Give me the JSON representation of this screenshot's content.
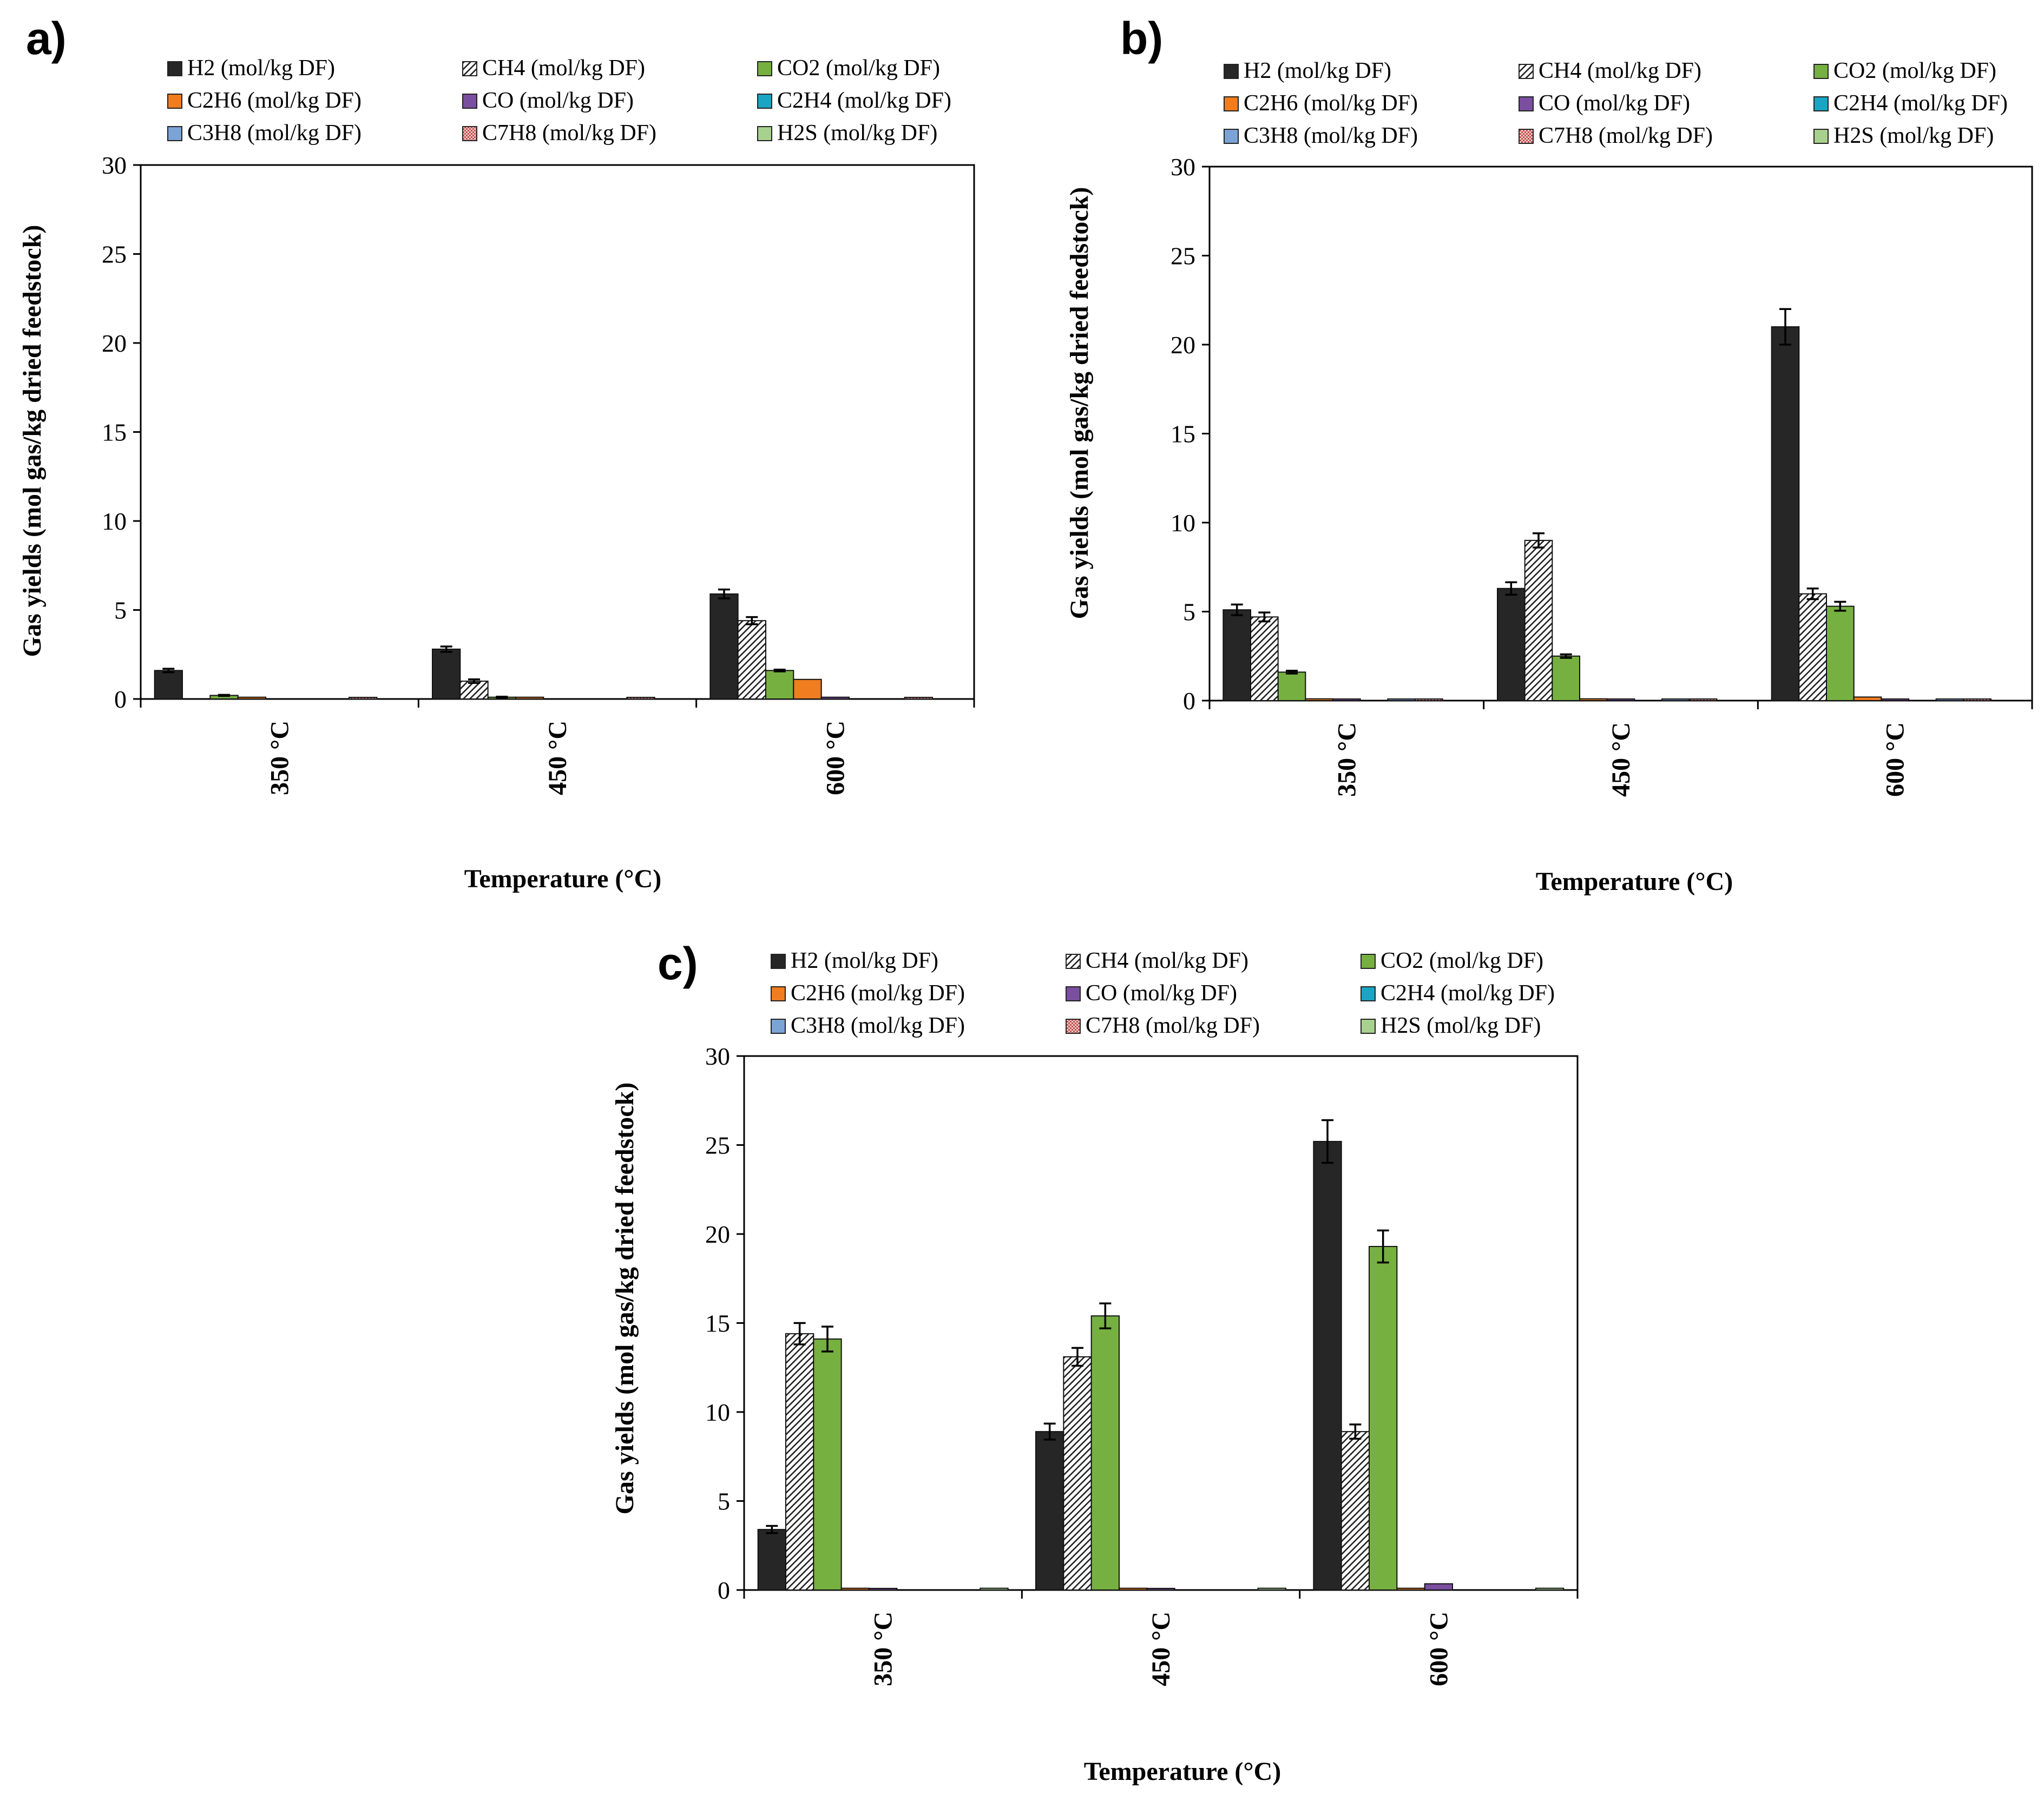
{
  "figure": {
    "panel_labels": [
      "a)",
      "b)",
      "c)"
    ]
  },
  "chart_data": [
    {
      "panel": "a)",
      "type": "bar",
      "categories": [
        "350 °C",
        "450 °C",
        "600 °C"
      ],
      "xlabel": "Temperature (°C)",
      "ylabel": "Gas yields  (mol gas/kg dried feedstock)",
      "ylim": [
        0,
        30
      ],
      "yticks": [
        0,
        5,
        10,
        15,
        20,
        25,
        30
      ],
      "legend_position": "top",
      "series": [
        {
          "name": "H2 (mol/kg DF)",
          "color": "#262626",
          "pattern": "solid",
          "values": [
            1.6,
            2.8,
            5.9
          ],
          "errors": [
            0.1,
            0.15,
            0.25
          ]
        },
        {
          "name": "CH4 (mol/kg DF)",
          "color": "#ffffff",
          "pattern": "hatch",
          "values": [
            0.0,
            1.0,
            4.4
          ],
          "errors": [
            0,
            0.1,
            0.2
          ]
        },
        {
          "name": "CO2 (mol/kg DF)",
          "color": "#76b041",
          "pattern": "solid",
          "values": [
            0.2,
            0.1,
            1.6
          ],
          "errors": [
            0.03,
            0.03,
            0.05
          ]
        },
        {
          "name": "C2H6 (mol/kg DF)",
          "color": "#f07d1f",
          "pattern": "solid",
          "values": [
            0.1,
            0.1,
            1.1
          ],
          "errors": [
            0,
            0,
            0
          ]
        },
        {
          "name": "CO (mol/kg DF)",
          "color": "#7b4fa0",
          "pattern": "solid",
          "values": [
            0.0,
            0.0,
            0.1
          ],
          "errors": [
            0,
            0,
            0
          ]
        },
        {
          "name": "C2H4 (mol/kg DF)",
          "color": "#1aa5c4",
          "pattern": "solid",
          "values": [
            0.0,
            0.0,
            0.0
          ],
          "errors": [
            0,
            0,
            0
          ]
        },
        {
          "name": "C3H8 (mol/kg DF)",
          "color": "#7ba3d6",
          "pattern": "solid",
          "values": [
            0.0,
            0.0,
            0.0
          ],
          "errors": [
            0,
            0,
            0
          ]
        },
        {
          "name": "C7H8 (mol/kg DF)",
          "color": "#e59694",
          "pattern": "checker",
          "values": [
            0.05,
            0.05,
            0.05
          ],
          "errors": [
            0,
            0,
            0
          ]
        },
        {
          "name": "H2S (mol/kg DF)",
          "color": "#a9d18e",
          "pattern": "solid",
          "values": [
            0.0,
            0.0,
            0.0
          ],
          "errors": [
            0,
            0,
            0
          ]
        }
      ]
    },
    {
      "panel": "b)",
      "type": "bar",
      "categories": [
        "350 °C",
        "450 °C",
        "600 °C"
      ],
      "xlabel": "Temperature (°C)",
      "ylabel": "Gas yields (mol gas/kg dried feedstock)",
      "ylim": [
        0,
        30
      ],
      "yticks": [
        0,
        5,
        10,
        15,
        20,
        25,
        30
      ],
      "legend_position": "top",
      "series": [
        {
          "name": "H2 (mol/kg DF)",
          "color": "#262626",
          "pattern": "solid",
          "values": [
            5.1,
            6.3,
            21.0
          ],
          "errors": [
            0.3,
            0.35,
            1.0
          ]
        },
        {
          "name": "CH4 (mol/kg DF)",
          "color": "#ffffff",
          "pattern": "hatch",
          "values": [
            4.7,
            9.0,
            6.0
          ],
          "errors": [
            0.25,
            0.4,
            0.3
          ]
        },
        {
          "name": "CO2 (mol/kg DF)",
          "color": "#76b041",
          "pattern": "solid",
          "values": [
            1.6,
            2.5,
            5.3
          ],
          "errors": [
            0.08,
            0.1,
            0.25
          ]
        },
        {
          "name": "C2H6 (mol/kg DF)",
          "color": "#f07d1f",
          "pattern": "solid",
          "values": [
            0.1,
            0.1,
            0.2
          ],
          "errors": [
            0,
            0,
            0
          ]
        },
        {
          "name": "CO (mol/kg DF)",
          "color": "#7b4fa0",
          "pattern": "solid",
          "values": [
            0.05,
            0.05,
            0.05
          ],
          "errors": [
            0,
            0,
            0
          ]
        },
        {
          "name": "C2H4 (mol/kg DF)",
          "color": "#1aa5c4",
          "pattern": "solid",
          "values": [
            0.0,
            0.0,
            0.0
          ],
          "errors": [
            0,
            0,
            0
          ]
        },
        {
          "name": "C3H8 (mol/kg DF)",
          "color": "#7ba3d6",
          "pattern": "solid",
          "values": [
            0.05,
            0.05,
            0.05
          ],
          "errors": [
            0,
            0,
            0
          ]
        },
        {
          "name": "C7H8 (mol/kg DF)",
          "color": "#e59694",
          "pattern": "checker",
          "values": [
            0.05,
            0.05,
            0.05
          ],
          "errors": [
            0,
            0,
            0
          ]
        },
        {
          "name": "H2S (mol/kg DF)",
          "color": "#a9d18e",
          "pattern": "solid",
          "values": [
            0.0,
            0.0,
            0.0
          ],
          "errors": [
            0,
            0,
            0
          ]
        }
      ]
    },
    {
      "panel": "c)",
      "type": "bar",
      "categories": [
        "350 °C",
        "450 °C",
        "600 °C"
      ],
      "xlabel": "Temperature (°C)",
      "ylabel": "Gas yields (mol gas/kg dried feedstock)",
      "ylim": [
        0,
        30
      ],
      "yticks": [
        0,
        5,
        10,
        15,
        20,
        25,
        30
      ],
      "legend_position": "top",
      "series": [
        {
          "name": "H2 (mol/kg DF)",
          "color": "#262626",
          "pattern": "solid",
          "values": [
            3.4,
            8.9,
            25.2
          ],
          "errors": [
            0.2,
            0.45,
            1.2
          ]
        },
        {
          "name": "CH4 (mol/kg DF)",
          "color": "#ffffff",
          "pattern": "hatch",
          "values": [
            14.4,
            13.1,
            8.9
          ],
          "errors": [
            0.6,
            0.5,
            0.4
          ]
        },
        {
          "name": "CO2 (mol/kg DF)",
          "color": "#76b041",
          "pattern": "solid",
          "values": [
            14.1,
            15.4,
            19.3
          ],
          "errors": [
            0.7,
            0.7,
            0.9
          ]
        },
        {
          "name": "C2H6 (mol/kg DF)",
          "color": "#f07d1f",
          "pattern": "solid",
          "values": [
            0.1,
            0.1,
            0.1
          ],
          "errors": [
            0,
            0,
            0
          ]
        },
        {
          "name": "CO (mol/kg DF)",
          "color": "#7b4fa0",
          "pattern": "solid",
          "values": [
            0.05,
            0.05,
            0.35
          ],
          "errors": [
            0,
            0,
            0
          ]
        },
        {
          "name": "C2H4 (mol/kg DF)",
          "color": "#1aa5c4",
          "pattern": "solid",
          "values": [
            0.0,
            0.0,
            0.0
          ],
          "errors": [
            0,
            0,
            0
          ]
        },
        {
          "name": "C3H8 (mol/kg DF)",
          "color": "#7ba3d6",
          "pattern": "solid",
          "values": [
            0.0,
            0.0,
            0.0
          ],
          "errors": [
            0,
            0,
            0
          ]
        },
        {
          "name": "C7H8 (mol/kg DF)",
          "color": "#e59694",
          "pattern": "checker",
          "values": [
            0.0,
            0.0,
            0.0
          ],
          "errors": [
            0,
            0,
            0
          ]
        },
        {
          "name": "H2S (mol/kg DF)",
          "color": "#a9d18e",
          "pattern": "solid",
          "values": [
            0.1,
            0.1,
            0.1
          ],
          "errors": [
            0,
            0,
            0
          ]
        }
      ]
    }
  ]
}
